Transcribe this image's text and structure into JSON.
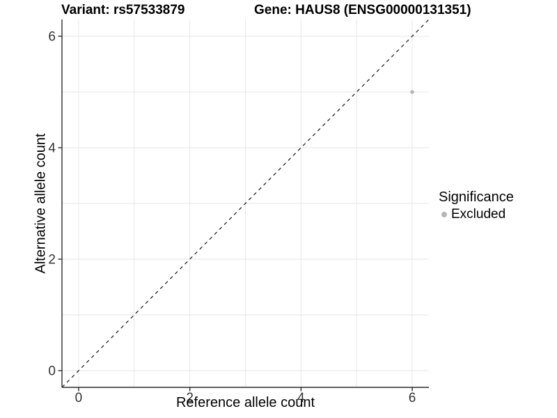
{
  "header": {
    "variant_title": "Variant: rs57533879",
    "gene_title": "Gene: HAUS8 (ENSG00000131351)"
  },
  "axes": {
    "x_title": "Reference allele count",
    "y_title": "Alternative allele count"
  },
  "legend": {
    "title": "Significance",
    "items": [
      {
        "label": "Excluded",
        "color": "#b5b5b5"
      }
    ]
  },
  "chart_data": {
    "type": "scatter",
    "title": "Variant: rs57533879 | Gene: HAUS8 (ENSG00000131351)",
    "xlabel": "Reference allele count",
    "ylabel": "Alternative allele count",
    "xlim": [
      -0.3,
      6.3
    ],
    "ylim": [
      -0.3,
      6.3
    ],
    "x_ticks": [
      0,
      2,
      4,
      6
    ],
    "y_ticks": [
      0,
      2,
      4,
      6
    ],
    "grid_positions": [
      0,
      1,
      2,
      3,
      4,
      5,
      6
    ],
    "grid": "on",
    "series": [
      {
        "name": "Excluded",
        "color": "#b5b5b5",
        "points": [
          {
            "x": 6,
            "y": 5
          }
        ]
      }
    ],
    "reference_line": {
      "equation": "y = x",
      "from": [
        -0.3,
        -0.3
      ],
      "to": [
        6.3,
        6.3
      ],
      "style": "dashed",
      "color": "#141414"
    },
    "legend": {
      "title": "Significance",
      "position": "right",
      "entries": [
        "Excluded"
      ]
    },
    "colors": {
      "gridline": "#e6e6e6",
      "axis_line": "#2a2a2a",
      "tick_label": "#333333",
      "point": "#b5b5b5"
    },
    "tick_label_font_px": 19
  }
}
